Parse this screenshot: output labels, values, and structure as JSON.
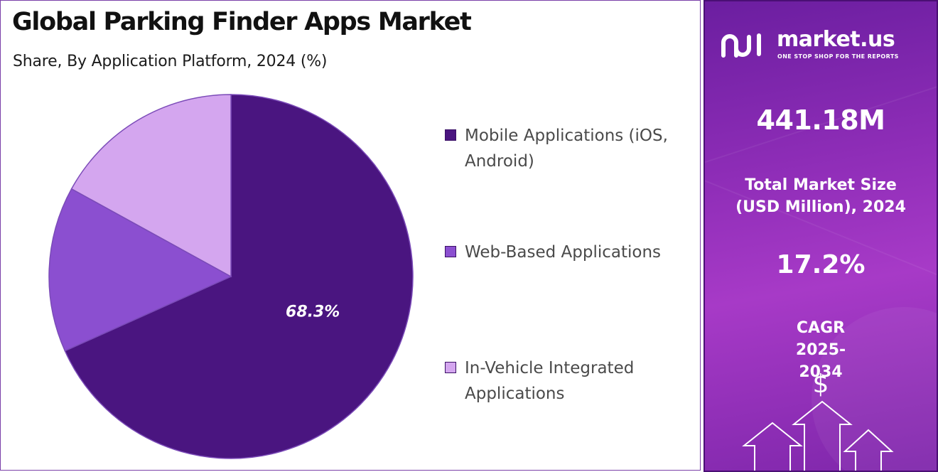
{
  "header": {
    "title": "Global Parking Finder Apps Market",
    "subtitle": "Share, By Application Platform, 2024 (%)"
  },
  "chart_data": {
    "type": "pie",
    "title": "Global Parking Finder Apps Market",
    "subtitle": "Share, By Application Platform, 2024 (%)",
    "categories": [
      "Mobile Applications (iOS, Android)",
      "Web-Based Applications",
      "In-Vehicle Integrated Applications"
    ],
    "values": [
      68.3,
      14.7,
      17.0
    ],
    "colors": [
      "#4a1580",
      "#8b4fd0",
      "#d4a6ef"
    ],
    "data_labels": [
      "68.3%",
      "",
      ""
    ],
    "legend_position": "right"
  },
  "sidebar": {
    "brand_name": "market.us",
    "tagline": "ONE STOP SHOP FOR THE REPORTS",
    "market_size_value": "441.18M",
    "market_size_label": "Total Market Size (USD Million), 2024",
    "cagr_value": "17.2%",
    "cagr_label": "CAGR 2025-2034",
    "dollar_symbol": "$",
    "background_color": "#8e2db7"
  }
}
